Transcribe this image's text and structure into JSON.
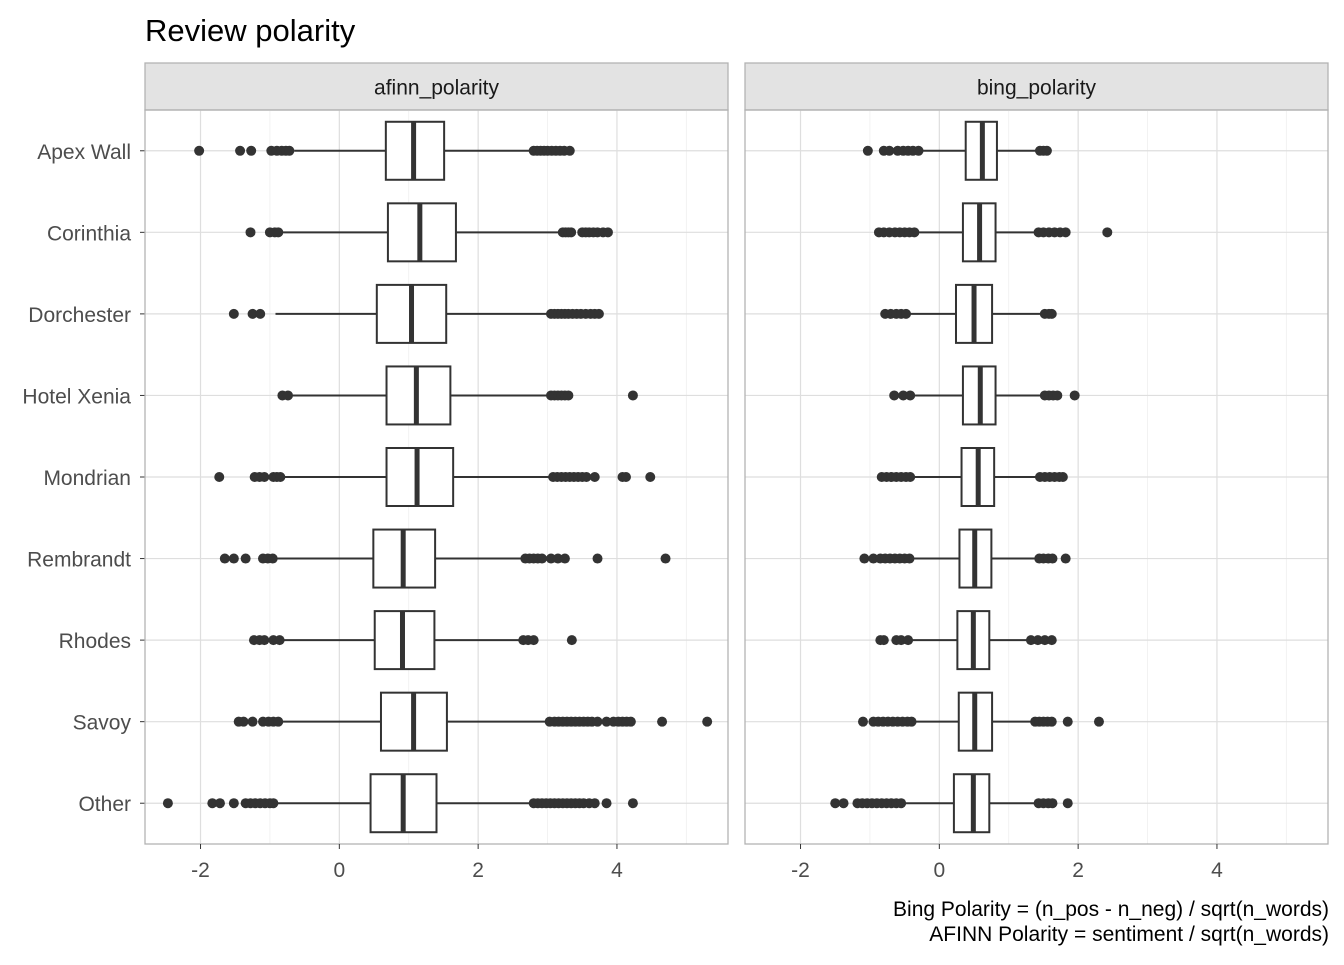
{
  "chart_data": {
    "type": "boxplot",
    "title": "Review polarity",
    "categories": [
      "Apex Wall",
      "Corinthia",
      "Dorchester",
      "Hotel Xenia",
      "Mondrian",
      "Rembrandt",
      "Rhodes",
      "Savoy",
      "Other"
    ],
    "xlim": [
      -2.8,
      5.6
    ],
    "x_ticks": [
      -2,
      0,
      2,
      4
    ],
    "grid": true,
    "caption": [
      "Bing Polarity = (n_pos - n_neg) / sqrt(n_words)",
      "AFINN Polarity = sentiment / sqrt(n_words)"
    ],
    "panels": [
      {
        "label": "afinn_polarity",
        "boxes": [
          {
            "category": "Apex Wall",
            "whisker_low": -0.65,
            "q1": 0.67,
            "median": 1.07,
            "q3": 1.51,
            "whisker_high": 2.78,
            "outliers": [
              -2.02,
              -1.43,
              -1.27,
              -0.98,
              -0.9,
              -0.83,
              -0.77,
              -0.72,
              2.8,
              2.85,
              2.9,
              2.95,
              3.0,
              3.06,
              3.12,
              3.18,
              3.24,
              3.32
            ]
          },
          {
            "category": "Corinthia",
            "whisker_low": -0.85,
            "q1": 0.7,
            "median": 1.16,
            "q3": 1.68,
            "whisker_high": 3.22,
            "outliers": [
              -1.28,
              -1.0,
              -0.93,
              -0.88,
              3.22,
              3.26,
              3.3,
              3.34,
              3.5,
              3.55,
              3.6,
              3.66,
              3.72,
              3.8,
              3.87
            ]
          },
          {
            "category": "Dorchester",
            "whisker_low": -0.92,
            "q1": 0.54,
            "median": 1.04,
            "q3": 1.54,
            "whisker_high": 3.05,
            "outliers": [
              -1.52,
              -1.25,
              -1.14,
              3.05,
              3.1,
              3.15,
              3.2,
              3.25,
              3.3,
              3.36,
              3.42,
              3.48,
              3.55,
              3.62,
              3.68,
              3.74
            ]
          },
          {
            "category": "Hotel Xenia",
            "whisker_low": -0.72,
            "q1": 0.68,
            "median": 1.11,
            "q3": 1.6,
            "whisker_high": 3.05,
            "outliers": [
              -0.82,
              -0.74,
              3.05,
              3.1,
              3.15,
              3.2,
              3.25,
              3.3,
              4.23
            ]
          },
          {
            "category": "Mondrian",
            "whisker_low": -0.85,
            "q1": 0.68,
            "median": 1.12,
            "q3": 1.64,
            "whisker_high": 3.07,
            "outliers": [
              -1.73,
              -1.22,
              -1.15,
              -1.08,
              -0.95,
              -0.9,
              -0.85,
              3.08,
              3.14,
              3.2,
              3.26,
              3.32,
              3.38,
              3.44,
              3.5,
              3.56,
              3.68,
              4.08,
              4.13,
              4.48
            ]
          },
          {
            "category": "Rembrandt",
            "whisker_low": -0.92,
            "q1": 0.49,
            "median": 0.92,
            "q3": 1.38,
            "whisker_high": 2.68,
            "outliers": [
              -1.65,
              -1.52,
              -1.35,
              -1.1,
              -1.03,
              -0.96,
              2.68,
              2.74,
              2.8,
              2.86,
              2.92,
              3.05,
              3.15,
              3.25,
              3.72,
              4.7
            ]
          },
          {
            "category": "Rhodes",
            "whisker_low": -0.82,
            "q1": 0.51,
            "median": 0.91,
            "q3": 1.37,
            "whisker_high": 2.65,
            "outliers": [
              -1.23,
              -1.15,
              -1.08,
              -0.95,
              -0.86,
              2.65,
              2.72,
              2.8,
              3.35
            ]
          },
          {
            "category": "Savoy",
            "whisker_low": -0.88,
            "q1": 0.6,
            "median": 1.07,
            "q3": 1.55,
            "whisker_high": 3.03,
            "outliers": [
              -1.45,
              -1.38,
              -1.25,
              -1.1,
              -1.02,
              -0.95,
              -0.88,
              3.03,
              3.1,
              3.16,
              3.22,
              3.28,
              3.34,
              3.4,
              3.46,
              3.52,
              3.58,
              3.64,
              3.72,
              3.85,
              3.95,
              4.02,
              4.08,
              4.14,
              4.2,
              4.65,
              5.3
            ]
          },
          {
            "category": "Other",
            "whisker_low": -0.95,
            "q1": 0.45,
            "median": 0.92,
            "q3": 1.4,
            "whisker_high": 2.8,
            "outliers": [
              -2.47,
              -1.83,
              -1.72,
              -1.52,
              -1.35,
              -1.28,
              -1.21,
              -1.14,
              -1.07,
              -1.0,
              -0.95,
              2.8,
              2.86,
              2.92,
              2.98,
              3.04,
              3.1,
              3.16,
              3.22,
              3.28,
              3.34,
              3.4,
              3.46,
              3.52,
              3.6,
              3.68,
              3.85,
              4.23
            ]
          }
        ]
      },
      {
        "label": "bing_polarity",
        "boxes": [
          {
            "category": "Apex Wall",
            "whisker_low": -0.3,
            "q1": 0.38,
            "median": 0.62,
            "q3": 0.83,
            "whisker_high": 1.45,
            "outliers": [
              -1.03,
              -0.8,
              -0.72,
              -0.6,
              -0.52,
              -0.45,
              -0.38,
              -0.3,
              1.45,
              1.5,
              1.55
            ]
          },
          {
            "category": "Corinthia",
            "whisker_low": -0.35,
            "q1": 0.34,
            "median": 0.58,
            "q3": 0.81,
            "whisker_high": 1.43,
            "outliers": [
              -0.87,
              -0.8,
              -0.72,
              -0.64,
              -0.57,
              -0.5,
              -0.43,
              -0.36,
              1.43,
              1.5,
              1.58,
              1.66,
              1.74,
              1.82,
              2.42
            ]
          },
          {
            "category": "Dorchester",
            "whisker_low": -0.45,
            "q1": 0.24,
            "median": 0.5,
            "q3": 0.76,
            "whisker_high": 1.52,
            "outliers": [
              -0.78,
              -0.7,
              -0.62,
              -0.55,
              -0.48,
              1.52,
              1.58,
              1.62
            ]
          },
          {
            "category": "Hotel Xenia",
            "whisker_low": -0.38,
            "q1": 0.34,
            "median": 0.59,
            "q3": 0.81,
            "whisker_high": 1.52,
            "outliers": [
              -0.65,
              -0.52,
              -0.42,
              1.52,
              1.58,
              1.64,
              1.7,
              1.95
            ]
          },
          {
            "category": "Mondrian",
            "whisker_low": -0.38,
            "q1": 0.32,
            "median": 0.56,
            "q3": 0.79,
            "whisker_high": 1.45,
            "outliers": [
              -0.83,
              -0.76,
              -0.69,
              -0.62,
              -0.55,
              -0.48,
              -0.42,
              1.45,
              1.52,
              1.59,
              1.66,
              1.73,
              1.78
            ]
          },
          {
            "category": "Rembrandt",
            "whisker_low": -0.42,
            "q1": 0.29,
            "median": 0.51,
            "q3": 0.75,
            "whisker_high": 1.44,
            "outliers": [
              -1.08,
              -0.95,
              -0.85,
              -0.78,
              -0.71,
              -0.64,
              -0.57,
              -0.5,
              -0.43,
              1.44,
              1.5,
              1.57,
              1.63,
              1.82
            ]
          },
          {
            "category": "Rhodes",
            "whisker_low": -0.45,
            "q1": 0.26,
            "median": 0.49,
            "q3": 0.72,
            "whisker_high": 1.32,
            "outliers": [
              -0.85,
              -0.8,
              -0.62,
              -0.55,
              -0.45,
              1.32,
              1.42,
              1.52,
              1.62
            ]
          },
          {
            "category": "Savoy",
            "whisker_low": -0.38,
            "q1": 0.28,
            "median": 0.51,
            "q3": 0.76,
            "whisker_high": 1.38,
            "outliers": [
              -1.1,
              -0.95,
              -0.88,
              -0.81,
              -0.74,
              -0.67,
              -0.6,
              -0.53,
              -0.46,
              -0.4,
              1.38,
              1.44,
              1.5,
              1.56,
              1.62,
              1.85,
              2.3
            ]
          },
          {
            "category": "Other",
            "whisker_low": -0.55,
            "q1": 0.21,
            "median": 0.49,
            "q3": 0.72,
            "whisker_high": 1.43,
            "outliers": [
              -1.5,
              -1.38,
              -1.18,
              -1.11,
              -1.04,
              -0.97,
              -0.9,
              -0.83,
              -0.76,
              -0.69,
              -0.62,
              -0.55,
              1.43,
              1.5,
              1.57,
              1.63,
              1.85
            ]
          }
        ]
      }
    ]
  }
}
